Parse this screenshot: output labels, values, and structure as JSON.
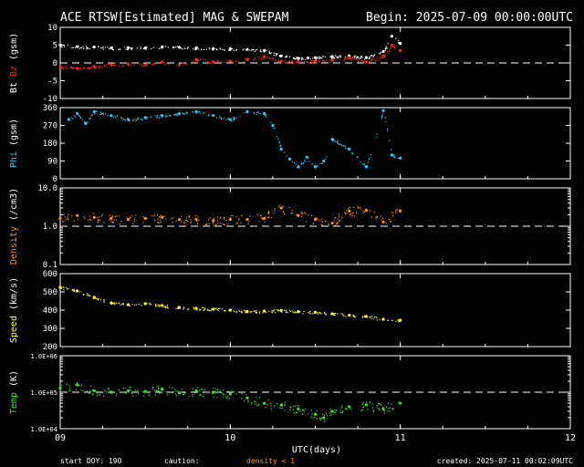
{
  "header": {
    "title": "ACE RTSW[Estimated] MAG & SWEPAM",
    "begin": "Begin: 2025-07-09 00:00:00UTC"
  },
  "footer": {
    "start_doy": "start DOY: 190",
    "caution": "caution:",
    "caution_note": "density < 1",
    "created": "created: 2025-07-11 00:02:09UTC",
    "xlabel": "UTC(days)"
  },
  "colors": {
    "bt": "#ffffff",
    "bz": "#ff2020",
    "phi": "#30c8f0",
    "density": "#ff9020",
    "speed": "#ffff30",
    "temp": "#30e830",
    "frame": "#ffffff",
    "caution": "#ff9020"
  },
  "chart_data": [
    {
      "type": "scatter",
      "id": "mag",
      "ylabel_parts": [
        "Bt",
        "Bz",
        "(gsm)"
      ],
      "ylim": [
        -10,
        10
      ],
      "yticks": [
        -10,
        -5,
        0,
        5,
        10
      ],
      "ytick_labels": [
        "-10",
        "-5",
        "0",
        "5",
        "10"
      ],
      "dashed_ref": 0,
      "xlim": [
        9,
        12
      ],
      "x": [
        9.0,
        9.1,
        9.2,
        9.3,
        9.4,
        9.5,
        9.6,
        9.7,
        9.8,
        9.9,
        10.0,
        10.1,
        10.2,
        10.3,
        10.4,
        10.5,
        10.6,
        10.7,
        10.8,
        10.9,
        10.95,
        11.0
      ],
      "series": [
        {
          "name": "Bt",
          "color_key": "bt",
          "values": [
            5,
            4.6,
            4.5,
            4.2,
            4.3,
            4.2,
            4.5,
            4.4,
            4.2,
            4.0,
            4.0,
            3.8,
            3.5,
            2.0,
            1.3,
            1.5,
            1.8,
            2.0,
            1.5,
            3.2,
            7.5,
            5.5
          ]
        },
        {
          "name": "Bz",
          "color_key": "bz",
          "values": [
            -1,
            -1.5,
            -1.0,
            -0.5,
            -0.3,
            -0.5,
            0.3,
            -0.5,
            1.0,
            0.3,
            0.5,
            1.0,
            1.8,
            0.5,
            0.2,
            0.5,
            0.8,
            1.5,
            0.3,
            2.0,
            5.0,
            3.5
          ]
        }
      ]
    },
    {
      "type": "scatter",
      "id": "phi",
      "ylabel_parts": [
        "Phi",
        "(gsm)"
      ],
      "ylim": [
        0,
        360
      ],
      "yticks": [
        0,
        90,
        180,
        270,
        360
      ],
      "ytick_labels": [
        "0",
        "90",
        "180",
        "270",
        "360"
      ],
      "xlim": [
        9,
        12
      ],
      "x": [
        9.05,
        9.1,
        9.15,
        9.2,
        9.3,
        9.4,
        9.5,
        9.6,
        9.7,
        9.8,
        9.9,
        10.0,
        10.1,
        10.2,
        10.25,
        10.3,
        10.35,
        10.4,
        10.45,
        10.5,
        10.55,
        10.6,
        10.7,
        10.8,
        10.9,
        10.95,
        11.0
      ],
      "series": [
        {
          "name": "Phi",
          "color_key": "phi",
          "values": [
            300,
            330,
            280,
            340,
            320,
            300,
            310,
            320,
            330,
            340,
            320,
            300,
            340,
            330,
            270,
            150,
            100,
            60,
            110,
            60,
            90,
            200,
            150,
            60,
            345,
            120,
            105
          ]
        }
      ]
    },
    {
      "type": "scatter",
      "id": "density",
      "ylabel_parts": [
        "Density",
        "(/cm3)"
      ],
      "log_scale": true,
      "ylim": [
        0.1,
        10
      ],
      "yticks": [
        0.1,
        1,
        10
      ],
      "ytick_labels": [
        "0.1",
        "1.0",
        "10.0"
      ],
      "dashed_ref": 1,
      "xlim": [
        9,
        12
      ],
      "x": [
        9.0,
        9.1,
        9.2,
        9.3,
        9.4,
        9.5,
        9.6,
        9.7,
        9.8,
        9.9,
        10.0,
        10.1,
        10.2,
        10.3,
        10.4,
        10.5,
        10.6,
        10.7,
        10.8,
        10.9,
        11.0
      ],
      "series": [
        {
          "name": "Density",
          "color_key": "density",
          "values": [
            1.6,
            1.9,
            1.7,
            1.6,
            1.5,
            1.6,
            1.7,
            1.5,
            1.5,
            1.4,
            1.5,
            1.5,
            1.6,
            3.0,
            1.9,
            1.5,
            1.2,
            2.5,
            2.6,
            1.3,
            2.5
          ]
        }
      ]
    },
    {
      "type": "scatter",
      "id": "speed",
      "ylabel_parts": [
        "Speed",
        "(km/s)"
      ],
      "ylim": [
        200,
        600
      ],
      "yticks": [
        200,
        300,
        400,
        500,
        600
      ],
      "ytick_labels": [
        "200",
        "300",
        "400",
        "500",
        "600"
      ],
      "xlim": [
        9,
        12
      ],
      "x": [
        9.0,
        9.1,
        9.2,
        9.3,
        9.4,
        9.5,
        9.6,
        9.7,
        9.8,
        9.9,
        10.0,
        10.1,
        10.2,
        10.3,
        10.4,
        10.5,
        10.6,
        10.7,
        10.8,
        10.9,
        11.0
      ],
      "series": [
        {
          "name": "Speed",
          "color_key": "speed",
          "values": [
            525,
            505,
            470,
            440,
            430,
            435,
            425,
            415,
            410,
            405,
            400,
            392,
            395,
            398,
            392,
            388,
            380,
            372,
            365,
            350,
            345
          ]
        }
      ]
    },
    {
      "type": "scatter",
      "id": "temp",
      "ylabel_parts": [
        "Temp",
        "(K)"
      ],
      "log_scale": true,
      "ylim": [
        10000,
        1000000
      ],
      "yticks": [
        10000,
        100000,
        1000000
      ],
      "ytick_labels": [
        "1.0E+04",
        "1.0E+05",
        "1.0E+06"
      ],
      "dashed_ref": 100000,
      "xlim": [
        9,
        12
      ],
      "xticks": [
        9,
        10,
        11,
        12
      ],
      "xtick_labels": [
        "09",
        "10",
        "11",
        "12"
      ],
      "x": [
        9.0,
        9.1,
        9.2,
        9.3,
        9.4,
        9.5,
        9.6,
        9.7,
        9.8,
        9.9,
        10.0,
        10.1,
        10.2,
        10.3,
        10.4,
        10.5,
        10.55,
        10.6,
        10.7,
        10.8,
        10.9,
        11.0
      ],
      "series": [
        {
          "name": "Temp",
          "color_key": "temp",
          "values": [
            130000,
            160000,
            110000,
            100000,
            110000,
            105000,
            120000,
            95000,
            110000,
            100000,
            90000,
            70000,
            50000,
            45000,
            35000,
            25000,
            20000,
            30000,
            40000,
            45000,
            35000,
            50000
          ]
        }
      ]
    }
  ]
}
